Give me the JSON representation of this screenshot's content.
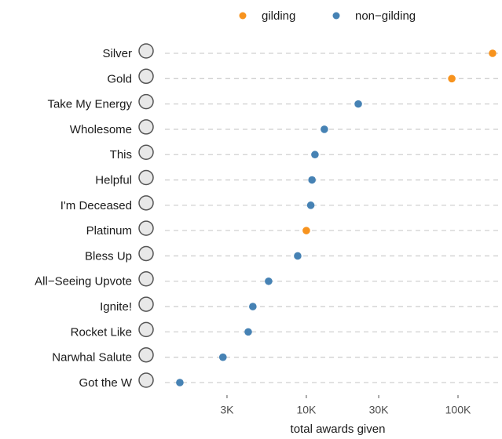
{
  "chart_data": {
    "type": "dot",
    "xlabel": "total awards given",
    "categories": [
      "Silver",
      "Gold",
      "Take My Energy",
      "Wholesome",
      "This",
      "Helpful",
      "I'm Deceased",
      "Platinum",
      "Bless Up",
      "All−Seeing Upvote",
      "Ignite!",
      "Rocket Like",
      "Narwhal Salute",
      "Got the W"
    ],
    "series": [
      {
        "name": "gilding",
        "color": "#f7931e",
        "values": [
          169000,
          91000,
          null,
          null,
          null,
          null,
          null,
          10000,
          null,
          null,
          null,
          null,
          null,
          null
        ]
      },
      {
        "name": "non−gilding",
        "color": "#4682b4",
        "values": [
          null,
          null,
          22000,
          13150,
          11400,
          10900,
          10700,
          null,
          8770,
          5640,
          4440,
          4140,
          2820,
          1466
        ]
      }
    ],
    "xscale": "log",
    "xlim": [
      1170,
      195000
    ],
    "xticks": [
      {
        "value": 3000,
        "label": "3K"
      },
      {
        "value": 10000,
        "label": "10K"
      },
      {
        "value": 30000,
        "label": "30K"
      },
      {
        "value": 100000,
        "label": "100K"
      }
    ],
    "grid": true,
    "legend": "top"
  }
}
